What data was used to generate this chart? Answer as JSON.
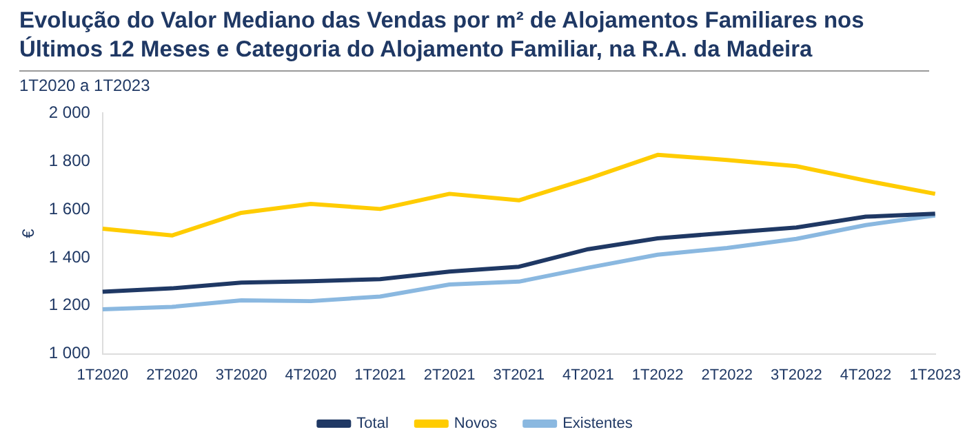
{
  "chart_data": {
    "type": "line",
    "title": "Evolução do Valor Mediano das Vendas por m² de Alojamentos Familiares nos Últimos 12 Meses e Categoria do Alojamento Familiar, na R.A. da Madeira",
    "subtitle": "1T2020 a 1T2023",
    "ylabel": "€",
    "categories": [
      "1T2020",
      "2T2020",
      "3T2020",
      "4T2020",
      "1T2021",
      "2T2021",
      "3T2021",
      "4T2021",
      "1T2022",
      "2T2022",
      "3T2022",
      "4T2022",
      "1T2023"
    ],
    "series": [
      {
        "name": "Total",
        "color": "#1f3864",
        "values": [
          1258,
          1272,
          1296,
          1302,
          1310,
          1342,
          1362,
          1435,
          1480,
          1503,
          1525,
          1570,
          1582
        ]
      },
      {
        "name": "Novos",
        "color": "#ffcc00",
        "values": [
          1520,
          1492,
          1586,
          1623,
          1602,
          1665,
          1638,
          1728,
          1827,
          1806,
          1780,
          1720,
          1665
        ]
      },
      {
        "name": "Existentes",
        "color": "#8ab8e0",
        "values": [
          1185,
          1195,
          1222,
          1219,
          1238,
          1288,
          1300,
          1358,
          1412,
          1440,
          1478,
          1535,
          1575
        ]
      }
    ],
    "ylim": [
      1000,
      2000
    ],
    "yticks": [
      {
        "value": 1000,
        "label": "1 000"
      },
      {
        "value": 1200,
        "label": "1 200"
      },
      {
        "value": 1400,
        "label": "1 400"
      },
      {
        "value": 1600,
        "label": "1 600"
      },
      {
        "value": 1800,
        "label": "1 800"
      },
      {
        "value": 2000,
        "label": "2 000"
      }
    ],
    "grid": false,
    "legend": "bottom",
    "marker": "none",
    "line_style": "solid"
  }
}
